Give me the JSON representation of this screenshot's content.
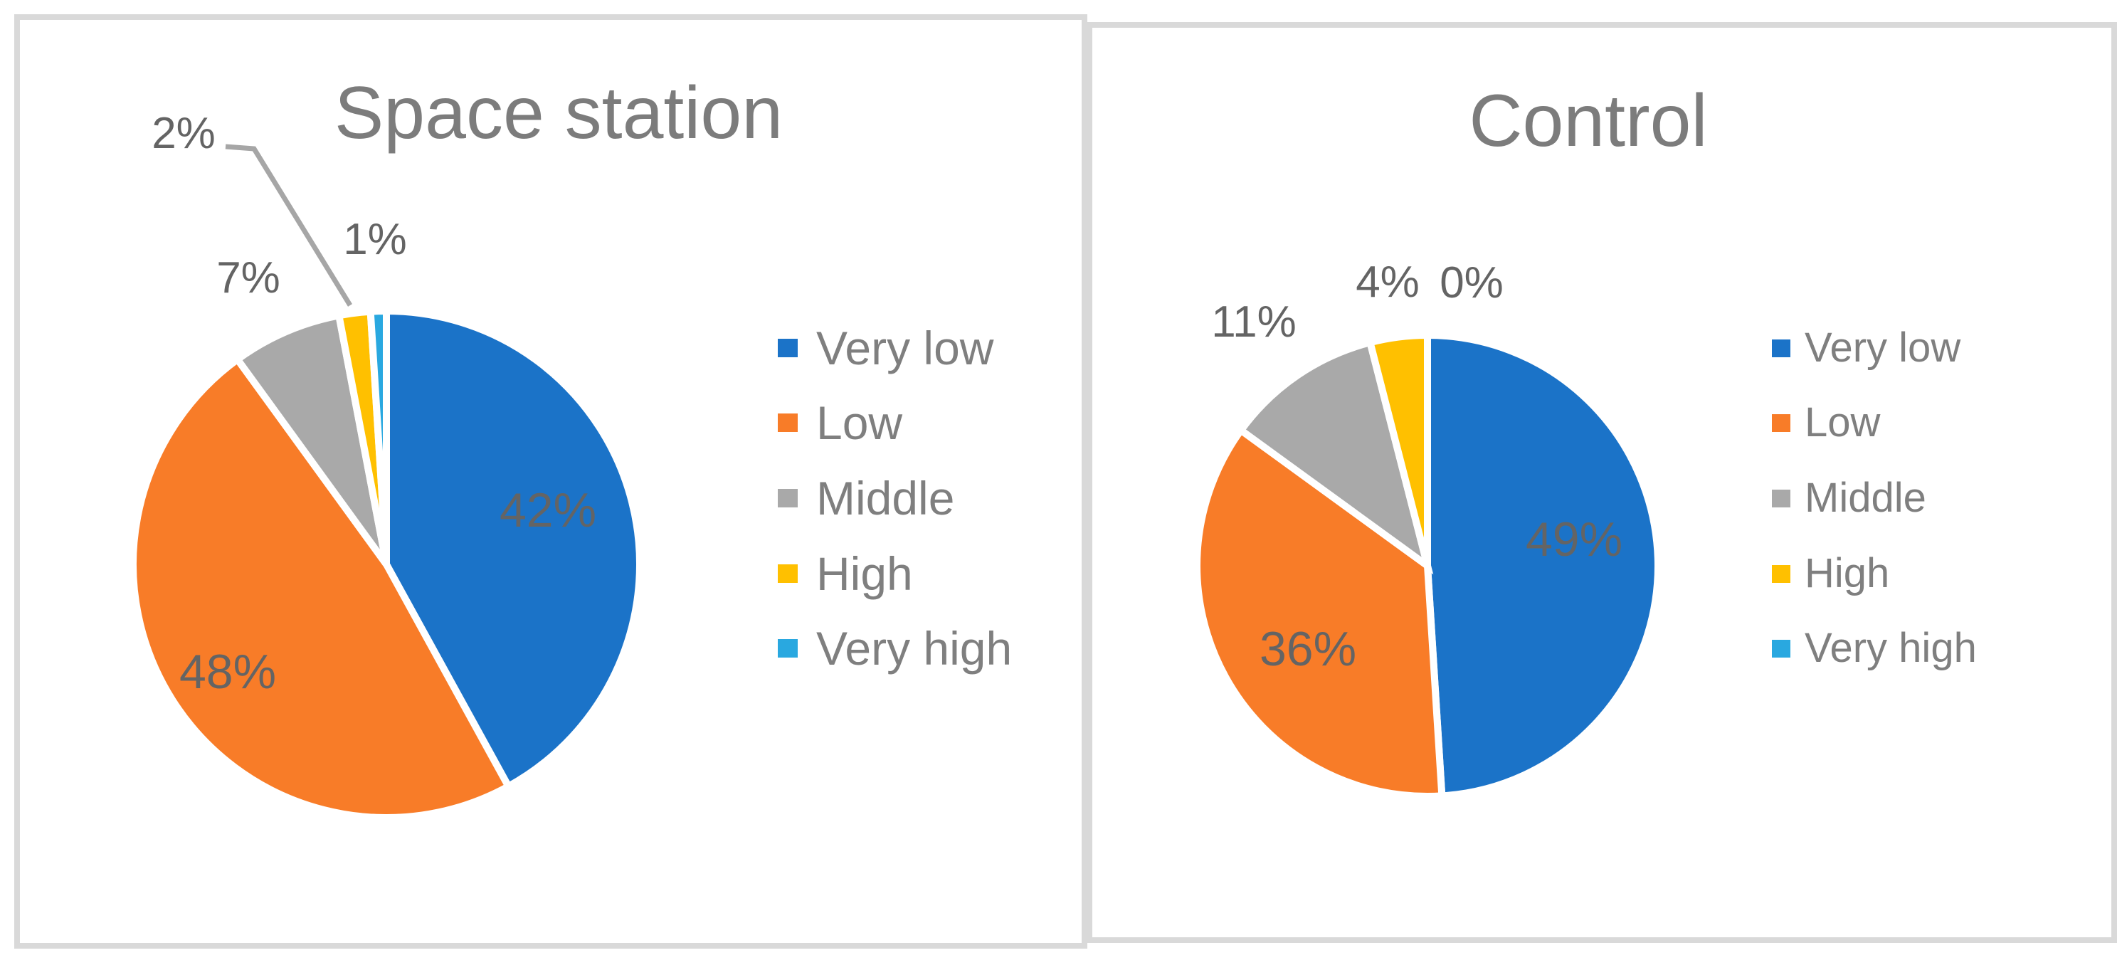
{
  "figure": {
    "background": "#FFFFFF",
    "description": "Two side-by-side pie charts comparing distributions"
  },
  "chart_data": [
    {
      "type": "pie",
      "title": "Space station",
      "categories": [
        "Very low",
        "Low",
        "Middle",
        "High",
        "Very high"
      ],
      "values": [
        42,
        48,
        7,
        2,
        1
      ],
      "unit": "%",
      "data_labels": [
        "42%",
        "48%",
        "7%",
        "2%",
        "1%"
      ],
      "label_placement": [
        "inside",
        "inside",
        "outside",
        "outside-with-leader",
        "outside"
      ],
      "legend_position": "right",
      "start_angle_deg": 0,
      "direction": "clockwise"
    },
    {
      "type": "pie",
      "title": "Control",
      "categories": [
        "Very low",
        "Low",
        "Middle",
        "High",
        "Very high"
      ],
      "values": [
        49,
        36,
        11,
        4,
        0
      ],
      "unit": "%",
      "data_labels": [
        "49%",
        "36%",
        "11%",
        "4%",
        "0%"
      ],
      "label_placement": [
        "inside",
        "inside",
        "outside",
        "outside",
        "outside"
      ],
      "legend_position": "right",
      "start_angle_deg": 0,
      "direction": "clockwise"
    }
  ],
  "colors": {
    "slices": [
      "#1B73C8",
      "#F87C28",
      "#A9A9A9",
      "#FFC000",
      "#29A8E0"
    ],
    "title_text": "#7C7C7C",
    "data_label_text": "#646464",
    "legend_text": "#7F7F7F",
    "panel_border": "#D9D9D9",
    "leader_line": "#A6A6A6",
    "slice_separator": "#FFFFFF"
  }
}
